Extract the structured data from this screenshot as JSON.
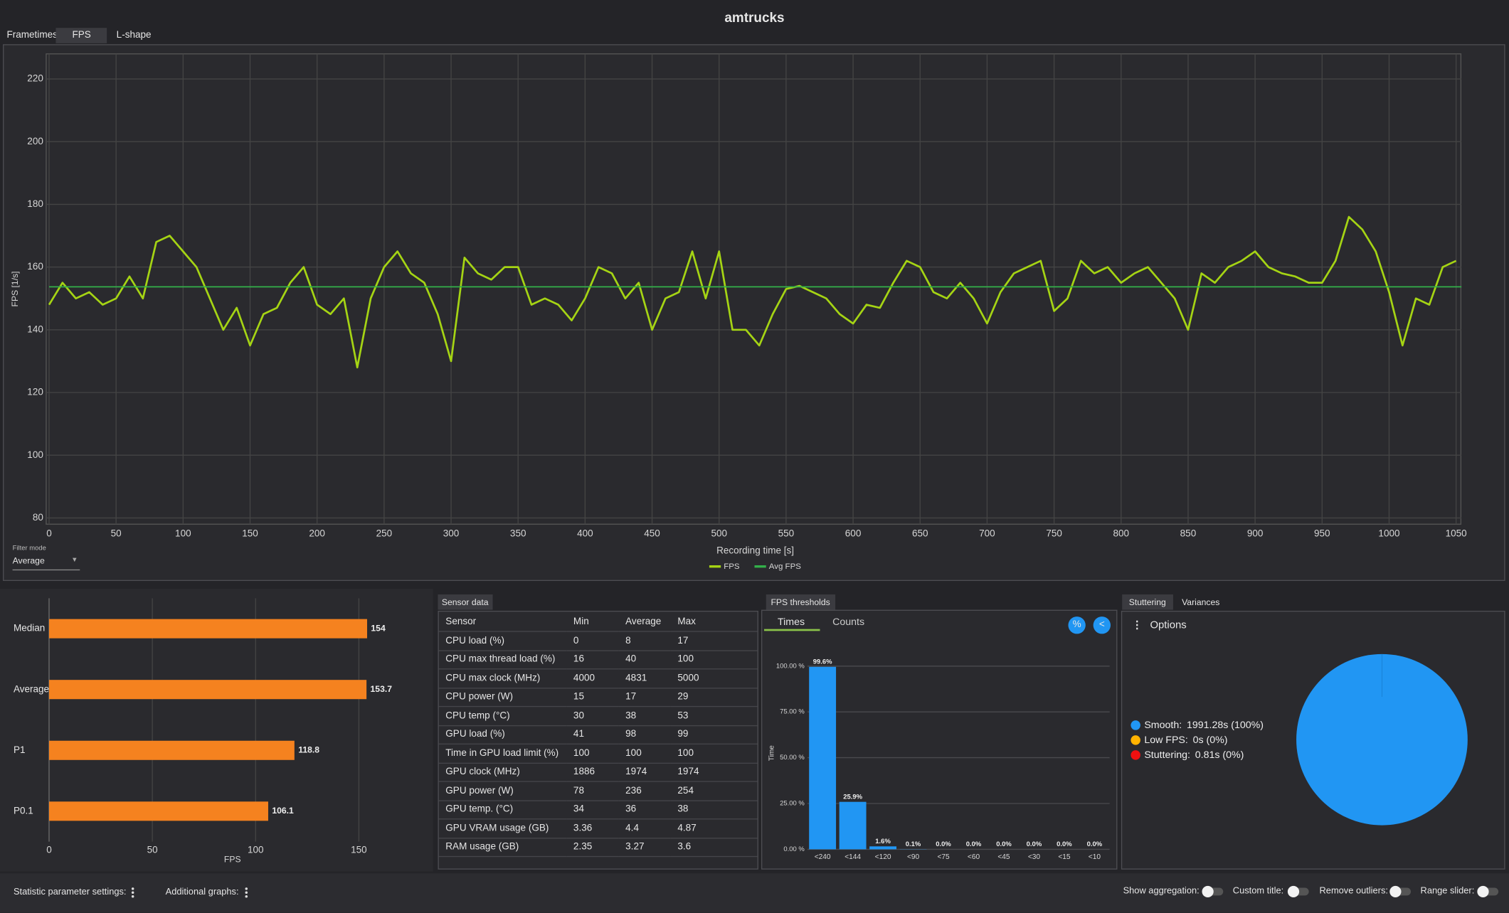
{
  "title": "amtrucks",
  "tabs": [
    "Frametimes",
    "FPS",
    "L-shape"
  ],
  "filter": {
    "label": "Filter mode",
    "value": "Average"
  },
  "sensor_tab": "Sensor data",
  "sensor_table": {
    "columns": [
      "Sensor",
      "Min",
      "Average",
      "Max"
    ],
    "rows": [
      [
        "CPU load (%)",
        0,
        8,
        17
      ],
      [
        "CPU max thread load (%)",
        16,
        40,
        100
      ],
      [
        "CPU max clock (MHz)",
        4000,
        4831,
        5000
      ],
      [
        "CPU power (W)",
        15,
        17,
        29
      ],
      [
        "CPU temp (°C)",
        30,
        38,
        53
      ],
      [
        "GPU load (%)",
        41,
        98,
        99
      ],
      [
        "Time in GPU load limit (%)",
        100,
        100,
        100
      ],
      [
        "GPU clock (MHz)",
        1886,
        1974,
        1974
      ],
      [
        "GPU power (W)",
        78,
        236,
        254
      ],
      [
        "GPU temp. (°C)",
        34,
        36,
        38
      ],
      [
        "GPU VRAM usage (GB)",
        3.36,
        4.4,
        4.87
      ],
      [
        "RAM usage (GB)",
        2.35,
        3.27,
        3.6
      ]
    ]
  },
  "thresholds_tab": "FPS thresholds",
  "threshold_subtabs": [
    "Times",
    "Counts"
  ],
  "threshold_buttons": [
    "%",
    "<"
  ],
  "stutter_tabs": [
    "Stuttering",
    "Variances"
  ],
  "options": "Options",
  "footer": {
    "left": [
      "Statistic parameter settings:",
      "Additional graphs:"
    ],
    "right": [
      "Show aggregation:",
      "Custom title:",
      "Remove outliers:",
      "Range slider:"
    ]
  },
  "chart_data": [
    {
      "type": "line",
      "x_label": "Recording time [s]",
      "y_label": "FPS [1/s]",
      "xlim": [
        0,
        1054
      ],
      "ylim": [
        78,
        228
      ],
      "xticks": [
        0,
        50,
        100,
        150,
        200,
        250,
        300,
        350,
        400,
        450,
        500,
        550,
        600,
        650,
        700,
        750,
        800,
        850,
        900,
        950,
        1000,
        1050
      ],
      "yticks": [
        80,
        100,
        120,
        140,
        160,
        180,
        200,
        220
      ],
      "grid": true,
      "legend": "bottom",
      "series": [
        {
          "name": "FPS",
          "color": "#a5d414",
          "x": [
            0,
            10,
            20,
            30,
            40,
            50,
            60,
            70,
            80,
            90,
            100,
            110,
            120,
            130,
            140,
            150,
            160,
            170,
            180,
            190,
            200,
            210,
            220,
            230,
            240,
            250,
            260,
            270,
            280,
            290,
            300,
            310,
            320,
            330,
            340,
            350,
            360,
            370,
            380,
            390,
            400,
            410,
            420,
            430,
            440,
            450,
            460,
            470,
            480,
            490,
            500,
            510,
            520,
            530,
            540,
            550,
            560,
            570,
            580,
            590,
            600,
            610,
            620,
            630,
            640,
            650,
            660,
            670,
            680,
            690,
            700,
            710,
            720,
            730,
            740,
            750,
            760,
            770,
            780,
            790,
            800,
            810,
            820,
            830,
            840,
            850,
            860,
            870,
            880,
            890,
            900,
            910,
            920,
            930,
            940,
            950,
            960,
            970,
            980,
            990,
            1000,
            1010,
            1020,
            1030,
            1040,
            1050
          ],
          "values": [
            148,
            155,
            150,
            152,
            148,
            150,
            157,
            150,
            168,
            170,
            165,
            160,
            150,
            140,
            147,
            135,
            145,
            147,
            155,
            160,
            148,
            145,
            150,
            128,
            150,
            160,
            165,
            158,
            155,
            145,
            130,
            163,
            158,
            156,
            160,
            160,
            148,
            150,
            148,
            143,
            150,
            160,
            158,
            150,
            155,
            140,
            150,
            152,
            165,
            150,
            165,
            140,
            140,
            135,
            145,
            153,
            154,
            152,
            150,
            145,
            142,
            148,
            147,
            155,
            162,
            160,
            152,
            150,
            155,
            150,
            142,
            152,
            158,
            160,
            162,
            146,
            150,
            162,
            158,
            160,
            155,
            158,
            160,
            155,
            150,
            140,
            158,
            155,
            160,
            162,
            165,
            160,
            158,
            157,
            155,
            155,
            162,
            176,
            172,
            165,
            152,
            135,
            150,
            148,
            160,
            162
          ]
        },
        {
          "name": "Avg FPS",
          "color": "#33b04a",
          "x": [
            0,
            1054
          ],
          "values": [
            153.7,
            153.7
          ]
        }
      ]
    },
    {
      "type": "hbar",
      "categories": [
        "Median",
        "Average",
        "P1",
        "P0.1"
      ],
      "values": [
        154,
        153.7,
        118.8,
        106.1
      ],
      "color": "#f5821f",
      "xlim": [
        0,
        185
      ],
      "xticks": [
        0,
        50,
        100,
        150
      ],
      "x_label": "FPS",
      "grid": true
    },
    {
      "type": "bar",
      "categories": [
        "<240",
        "<144",
        "<120",
        "<90",
        "<75",
        "<60",
        "<45",
        "<30",
        "<15",
        "<10"
      ],
      "values": [
        99.6,
        25.9,
        1.6,
        0.1,
        0,
        0,
        0,
        0,
        0,
        0
      ],
      "value_labels": [
        "99.6%",
        "25.9%",
        "1.6%",
        "0.1%",
        "0.0%",
        "0.0%",
        "0.0%",
        "0.0%",
        "0.0%",
        "0.0%"
      ],
      "color": "#2196f3",
      "ylim": [
        0,
        105
      ],
      "yticks": [
        {
          "value": 0,
          "label": "0.00 %"
        },
        {
          "value": 25,
          "label": "25.00 %"
        },
        {
          "value": 50,
          "label": "50.00 %"
        },
        {
          "value": 75,
          "label": "75.00 %"
        },
        {
          "value": 100,
          "label": "100.00 %"
        }
      ],
      "y_label": "Time",
      "grid": true
    },
    {
      "type": "pie",
      "categories": [
        "Smooth:",
        "Low FPS:",
        "Stuttering:"
      ],
      "values": [
        100,
        0,
        0
      ],
      "value_labels": [
        "1991.28s (100%)",
        "0s (0%)",
        "0.81s (0%)"
      ],
      "colors": [
        "#2196f3",
        "#ffb300",
        "#f01010"
      ],
      "legend": "left"
    }
  ]
}
